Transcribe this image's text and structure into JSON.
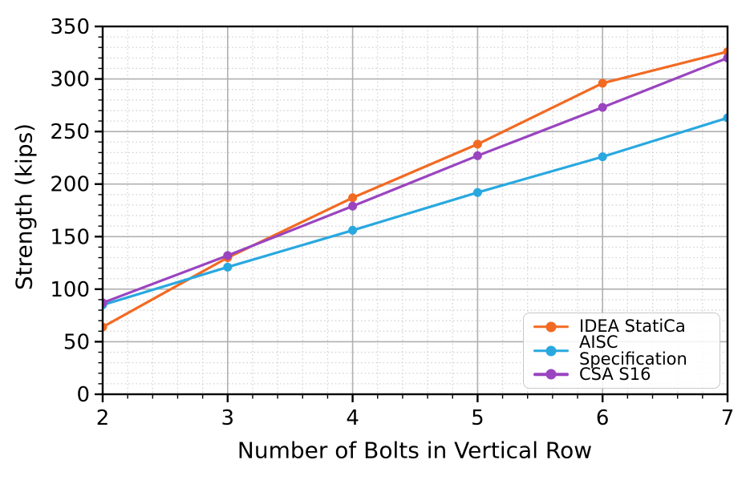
{
  "figure": {
    "background": "#ffffff",
    "text_color": "#000000"
  },
  "chart_data": {
    "type": "line",
    "title": "",
    "xlabel": "Number of Bolts in Vertical Row",
    "ylabel": "Strength (kips)",
    "x": [
      2,
      3,
      4,
      5,
      6,
      7
    ],
    "series": [
      {
        "name": "IDEA StatiCa",
        "color": "#f26a22",
        "values": [
          64,
          130,
          187,
          238,
          296,
          326
        ]
      },
      {
        "name": "AISC Specification",
        "color": "#29a8e0",
        "values": [
          85,
          121,
          156,
          192,
          226,
          263
        ]
      },
      {
        "name": "CSA S16",
        "color": "#9a44c0",
        "values": [
          87,
          132,
          179,
          227,
          273,
          320
        ]
      }
    ],
    "xlim": [
      2,
      7
    ],
    "ylim": [
      0,
      350
    ],
    "xticks": [
      2,
      3,
      4,
      5,
      6,
      7
    ],
    "yticks": [
      0,
      50,
      100,
      150,
      200,
      250,
      300,
      350
    ],
    "x_minor_step": 0.2,
    "y_minor_step": 10,
    "grid": {
      "major_on": true,
      "minor_on": true,
      "major_color": "#b0b0b0",
      "minor_color": "#d4d4d4",
      "minor_style": "dotted"
    },
    "axes_color": "#000000",
    "legend": {
      "position": "lower right",
      "entries": [
        "IDEA StatiCa",
        "AISC Specification",
        "CSA S16"
      ]
    }
  }
}
